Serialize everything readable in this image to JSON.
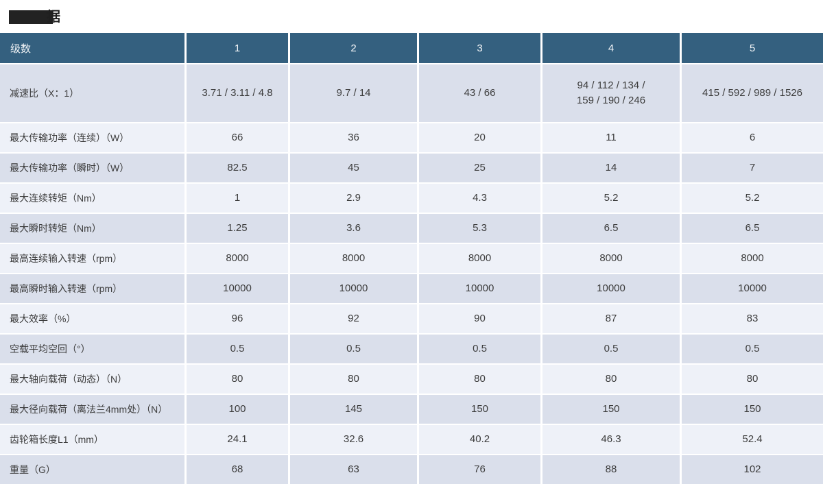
{
  "title": {
    "visible_fragment": "据"
  },
  "colors": {
    "header_bg": "#34607f",
    "header_text": "#f4f6f8",
    "row_dark": "#dadfeb",
    "row_light": "#eef1f8",
    "body_text": "#3c3c3c",
    "redaction": "#222222"
  },
  "table": {
    "header": [
      "级数",
      "1",
      "2",
      "3",
      "4",
      "5"
    ],
    "rows": [
      {
        "label": "减速比（X：1）",
        "values": [
          "3.71 / 3.11 / 4.8",
          "9.7 / 14",
          "43 / 66",
          "94 / 112 / 134 /\n159 / 190 / 246",
          "415 / 592 / 989 / 1526"
        ]
      },
      {
        "label": "最大传输功率（连续）（W）",
        "values": [
          "66",
          "36",
          "20",
          "11",
          "6"
        ]
      },
      {
        "label": "最大传输功率（瞬时）（W）",
        "values": [
          "82.5",
          "45",
          "25",
          "14",
          "7"
        ]
      },
      {
        "label": "最大连续转矩（Nm）",
        "values": [
          "1",
          "2.9",
          "4.3",
          "5.2",
          "5.2"
        ]
      },
      {
        "label": "最大瞬时转矩（Nm）",
        "values": [
          "1.25",
          "3.6",
          "5.3",
          "6.5",
          "6.5"
        ]
      },
      {
        "label": "最高连续输入转速（rpm）",
        "values": [
          "8000",
          "8000",
          "8000",
          "8000",
          "8000"
        ]
      },
      {
        "label": "最高瞬时输入转速（rpm）",
        "values": [
          "10000",
          "10000",
          "10000",
          "10000",
          "10000"
        ]
      },
      {
        "label": "最大效率（%）",
        "values": [
          "96",
          "92",
          "90",
          "87",
          "83"
        ]
      },
      {
        "label": "空载平均空回（°）",
        "values": [
          "0.5",
          "0.5",
          "0.5",
          "0.5",
          "0.5"
        ]
      },
      {
        "label": "最大轴向载荷（动态）（N）",
        "values": [
          "80",
          "80",
          "80",
          "80",
          "80"
        ]
      },
      {
        "label": "最大径向载荷（离法兰4mm处）（N）",
        "values": [
          "100",
          "145",
          "150",
          "150",
          "150"
        ]
      },
      {
        "label": "齿轮箱长度L1（mm）",
        "values": [
          "24.1",
          "32.6",
          "40.2",
          "46.3",
          "52.4"
        ]
      },
      {
        "label": "重量（G）",
        "values": [
          "68",
          "63",
          "76",
          "88",
          "102"
        ]
      }
    ]
  }
}
